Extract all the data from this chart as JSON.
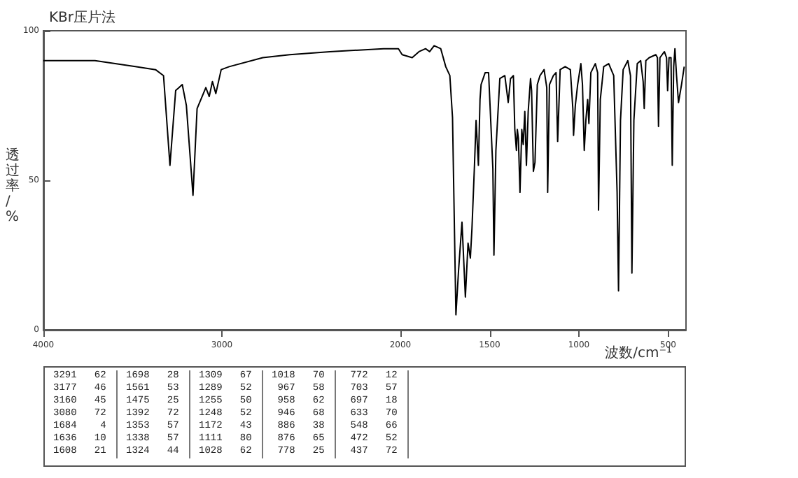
{
  "chart_data": {
    "type": "line",
    "title": "KBr压片法",
    "xlabel": "波数/cm⁻¹",
    "ylabel": "透过率/%",
    "xlim": [
      4000,
      400
    ],
    "xticks": [
      4000,
      3000,
      2000,
      1500,
      1000,
      500
    ],
    "ylim": [
      0,
      100
    ],
    "yticks": [
      0,
      50,
      100
    ],
    "grid": false,
    "marker": "none",
    "line_style": "solid",
    "series": [
      {
        "color": "#000000",
        "x": [
          4000,
          3711,
          3485,
          3372,
          3327,
          3291,
          3259,
          3222,
          3199,
          3162,
          3139,
          3090,
          3071,
          3053,
          3034,
          3004,
          2959,
          2771,
          2620,
          2395,
          2094,
          2011,
          1990,
          1934,
          1896,
          1859,
          1836,
          1811,
          1774,
          1746,
          1723,
          1708,
          1689,
          1674,
          1655,
          1636,
          1621,
          1608,
          1599,
          1585,
          1576,
          1563,
          1554,
          1548,
          1525,
          1506,
          1482,
          1476,
          1465,
          1443,
          1415,
          1396,
          1383,
          1367,
          1359,
          1350,
          1345,
          1339,
          1330,
          1320,
          1312,
          1303,
          1294,
          1284,
          1271,
          1265,
          1255,
          1246,
          1233,
          1218,
          1195,
          1180,
          1175,
          1165,
          1143,
          1128,
          1119,
          1105,
          1077,
          1048,
          1034,
          1030,
          1020,
          1007,
          989,
          980,
          970,
          961,
          951,
          944,
          933,
          908,
          895,
          890,
          880,
          861,
          833,
          805,
          786,
          778,
          767,
          752,
          726,
          711,
          703,
          692,
          673,
          654,
          640,
          634,
          625,
          606,
          569,
          560,
          554,
          546,
          521,
          509,
          503,
          495,
          484,
          477,
          469,
          462,
          453,
          442,
          425,
          410
        ],
        "values": [
          90,
          90,
          88,
          87,
          85,
          55,
          80,
          82,
          75,
          45,
          74,
          81,
          78,
          83,
          79,
          87,
          88,
          91,
          92,
          93,
          94,
          94,
          92,
          91,
          93,
          94,
          93,
          95,
          94,
          88,
          85,
          71,
          5,
          20,
          36,
          11,
          29,
          24,
          34,
          55,
          70,
          55,
          77,
          82,
          86,
          86,
          54,
          25,
          60,
          84,
          85,
          76,
          84,
          85,
          67,
          60,
          67,
          64,
          46,
          67,
          62,
          73,
          55,
          73,
          84,
          80,
          53,
          56,
          82,
          85,
          87,
          81,
          46,
          82,
          85,
          86,
          63,
          87,
          88,
          87,
          74,
          65,
          75,
          82,
          89,
          82,
          60,
          70,
          77,
          69,
          86,
          89,
          86,
          40,
          77,
          88,
          89,
          85,
          46,
          13,
          70,
          87,
          90,
          85,
          19,
          70,
          89,
          90,
          83,
          74,
          90,
          91,
          92,
          91,
          68,
          91,
          93,
          91,
          80,
          91,
          91,
          55,
          88,
          94,
          85,
          76,
          82,
          88
        ]
      }
    ],
    "annotations": [
      "3291 62",
      "3177 46",
      "3160 45",
      "3080 72",
      "1684 4",
      "1636 10",
      "1608 21",
      "1698 28",
      "1561 53",
      "1475 25",
      "1392 72",
      "1353 57",
      "1338 57",
      "1324 44",
      "1309 67",
      "1289 52",
      "1255 50",
      "1248 52",
      "1172 43",
      "1111 80",
      "1028 62",
      "1018 70",
      "967 58",
      "958 62",
      "946 68",
      "886 38",
      "876 65",
      "778 25",
      "772 12",
      "703 57",
      "697 18",
      "633 70",
      "548 66",
      "472 52",
      "437 72"
    ]
  }
}
